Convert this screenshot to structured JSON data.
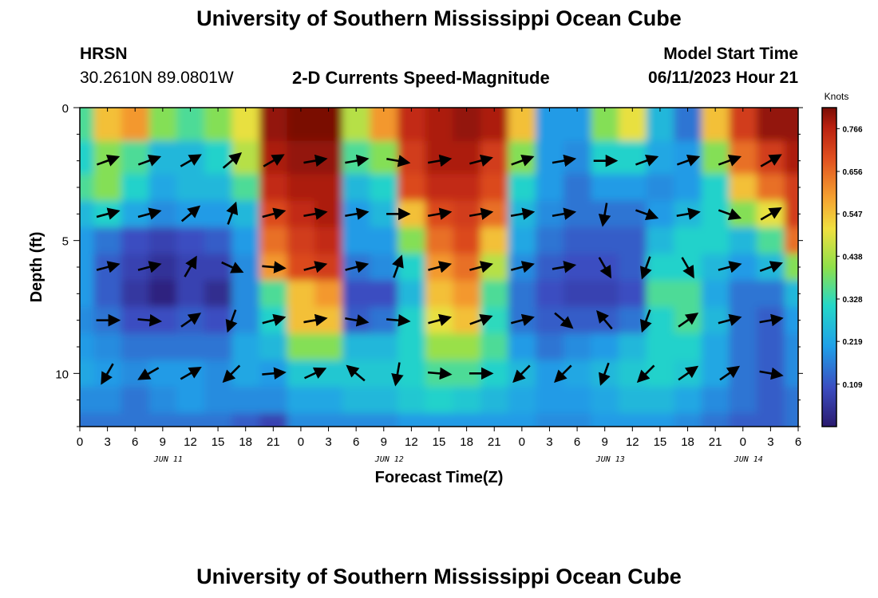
{
  "page": {
    "title": "University of Southern Mississippi Ocean Cube",
    "footer_title": "University of Southern Mississippi Ocean Cube",
    "station_code": "HRSN",
    "station_coords": "30.2610N  89.0801W",
    "plot_title": "2-D Currents Speed-Magnitude",
    "model_label": "Model Start Time",
    "model_time": "06/11/2023 Hour 21"
  },
  "chart_data": {
    "type": "heatmap",
    "title": "2-D Currents Speed-Magnitude",
    "xlabel": "Forecast Time(Z)",
    "ylabel": "Depth (ft)",
    "colorbar_label": "Knots",
    "colorbar_ticks": [
      "0.766",
      "0.656",
      "0.547",
      "0.438",
      "0.328",
      "0.219",
      "0.109"
    ],
    "x_tick_labels": [
      "0",
      "3",
      "6",
      "9",
      "12",
      "15",
      "18",
      "21",
      "0",
      "3",
      "6",
      "9",
      "12",
      "15",
      "18",
      "21",
      "0",
      "3",
      "6",
      "9",
      "12",
      "15",
      "18",
      "21",
      "0",
      "3",
      "6"
    ],
    "date_labels": [
      {
        "label": "JUN 11",
        "hour": 9
      },
      {
        "label": "JUN 12",
        "hour": 33
      },
      {
        "label": "JUN 13",
        "hour": 57
      },
      {
        "label": "JUN 14",
        "hour": 72
      }
    ],
    "y_tick_labels": [
      "0",
      "5",
      "10"
    ],
    "y_ticks": [
      0,
      5,
      10
    ],
    "xlim": [
      0,
      78
    ],
    "ylim": [
      0,
      12
    ],
    "vmin": 0.0,
    "vmax": 0.82,
    "depths_ft": [
      0.5,
      2,
      3,
      4,
      5,
      6,
      7,
      8,
      9,
      10,
      11,
      12
    ],
    "hours": [
      0,
      3,
      6,
      9,
      12,
      15,
      18,
      21,
      24,
      27,
      30,
      33,
      36,
      39,
      42,
      45,
      48,
      51,
      54,
      57,
      60,
      63,
      66,
      69,
      72,
      75,
      78
    ],
    "speed": [
      [
        0.35,
        0.55,
        0.6,
        0.4,
        0.35,
        0.4,
        0.5,
        0.8,
        0.82,
        0.82,
        0.45,
        0.6,
        0.75,
        0.78,
        0.8,
        0.78,
        0.55,
        0.2,
        0.2,
        0.4,
        0.5,
        0.25,
        0.15,
        0.55,
        0.72,
        0.8,
        0.8
      ],
      [
        0.3,
        0.4,
        0.35,
        0.25,
        0.25,
        0.3,
        0.45,
        0.78,
        0.8,
        0.8,
        0.35,
        0.4,
        0.72,
        0.78,
        0.78,
        0.72,
        0.4,
        0.2,
        0.18,
        0.3,
        0.3,
        0.22,
        0.2,
        0.4,
        0.65,
        0.72,
        0.78
      ],
      [
        0.35,
        0.4,
        0.3,
        0.22,
        0.25,
        0.25,
        0.35,
        0.75,
        0.78,
        0.78,
        0.25,
        0.3,
        0.7,
        0.75,
        0.75,
        0.7,
        0.3,
        0.2,
        0.15,
        0.2,
        0.2,
        0.18,
        0.2,
        0.3,
        0.55,
        0.65,
        0.72
      ],
      [
        0.25,
        0.3,
        0.22,
        0.18,
        0.2,
        0.2,
        0.25,
        0.7,
        0.75,
        0.78,
        0.2,
        0.25,
        0.55,
        0.7,
        0.72,
        0.65,
        0.25,
        0.18,
        0.15,
        0.15,
        0.15,
        0.2,
        0.25,
        0.3,
        0.4,
        0.5,
        0.72
      ],
      [
        0.2,
        0.15,
        0.1,
        0.08,
        0.1,
        0.12,
        0.2,
        0.65,
        0.72,
        0.75,
        0.2,
        0.2,
        0.4,
        0.65,
        0.7,
        0.55,
        0.22,
        0.15,
        0.12,
        0.12,
        0.12,
        0.25,
        0.3,
        0.3,
        0.25,
        0.35,
        0.65
      ],
      [
        0.2,
        0.12,
        0.08,
        0.05,
        0.08,
        0.08,
        0.18,
        0.6,
        0.7,
        0.72,
        0.15,
        0.18,
        0.3,
        0.6,
        0.65,
        0.45,
        0.18,
        0.12,
        0.1,
        0.1,
        0.12,
        0.3,
        0.3,
        0.25,
        0.2,
        0.25,
        0.4
      ],
      [
        0.2,
        0.12,
        0.06,
        0.02,
        0.08,
        0.04,
        0.18,
        0.35,
        0.55,
        0.6,
        0.1,
        0.1,
        0.25,
        0.55,
        0.6,
        0.35,
        0.15,
        0.1,
        0.08,
        0.08,
        0.1,
        0.35,
        0.35,
        0.22,
        0.15,
        0.15,
        0.25
      ],
      [
        0.18,
        0.15,
        0.1,
        0.1,
        0.12,
        0.1,
        0.18,
        0.3,
        0.55,
        0.55,
        0.12,
        0.15,
        0.3,
        0.5,
        0.55,
        0.32,
        0.15,
        0.12,
        0.12,
        0.12,
        0.15,
        0.3,
        0.35,
        0.25,
        0.15,
        0.12,
        0.2
      ],
      [
        0.2,
        0.18,
        0.15,
        0.15,
        0.15,
        0.15,
        0.22,
        0.25,
        0.4,
        0.4,
        0.25,
        0.25,
        0.3,
        0.42,
        0.42,
        0.35,
        0.2,
        0.15,
        0.18,
        0.2,
        0.25,
        0.3,
        0.3,
        0.22,
        0.15,
        0.12,
        0.18
      ],
      [
        0.22,
        0.2,
        0.18,
        0.2,
        0.2,
        0.18,
        0.22,
        0.2,
        0.28,
        0.28,
        0.28,
        0.28,
        0.3,
        0.35,
        0.35,
        0.3,
        0.25,
        0.2,
        0.22,
        0.25,
        0.28,
        0.3,
        0.28,
        0.22,
        0.15,
        0.12,
        0.18
      ],
      [
        0.18,
        0.18,
        0.15,
        0.18,
        0.2,
        0.18,
        0.18,
        0.18,
        0.22,
        0.22,
        0.25,
        0.25,
        0.28,
        0.3,
        0.28,
        0.25,
        0.22,
        0.2,
        0.2,
        0.22,
        0.25,
        0.25,
        0.22,
        0.18,
        0.15,
        0.12,
        0.15
      ],
      [
        0.15,
        0.15,
        0.15,
        0.15,
        0.15,
        0.15,
        0.12,
        0.08,
        0.18,
        0.18,
        0.18,
        0.18,
        0.2,
        0.2,
        0.2,
        0.2,
        0.2,
        0.18,
        0.18,
        0.2,
        0.2,
        0.2,
        0.18,
        0.15,
        0.12,
        0.12,
        0.15
      ]
    ],
    "vector_depths_ft": [
      2,
      4,
      6,
      8,
      10
    ],
    "vector_hours": [
      3,
      7.5,
      12,
      16.5,
      21,
      25.5,
      30,
      34.5,
      39,
      43.5,
      48,
      52.5,
      57,
      61.5,
      66,
      70.5,
      75
    ],
    "vector_angles_deg": [
      [
        20,
        20,
        30,
        40,
        30,
        10,
        10,
        -10,
        10,
        15,
        20,
        10,
        0,
        20,
        20,
        20,
        30
      ],
      [
        15,
        15,
        40,
        70,
        15,
        10,
        10,
        0,
        10,
        10,
        10,
        10,
        -100,
        -20,
        10,
        -20,
        30
      ],
      [
        15,
        15,
        60,
        -25,
        -5,
        15,
        15,
        70,
        15,
        15,
        15,
        10,
        -60,
        -110,
        -60,
        15,
        20
      ],
      [
        0,
        -5,
        35,
        -110,
        15,
        10,
        -10,
        -5,
        15,
        20,
        15,
        -40,
        130,
        -110,
        35,
        15,
        10
      ],
      [
        -120,
        -150,
        30,
        -135,
        5,
        25,
        140,
        -100,
        -5,
        0,
        -135,
        -135,
        -110,
        -135,
        35,
        35,
        -10
      ]
    ]
  }
}
